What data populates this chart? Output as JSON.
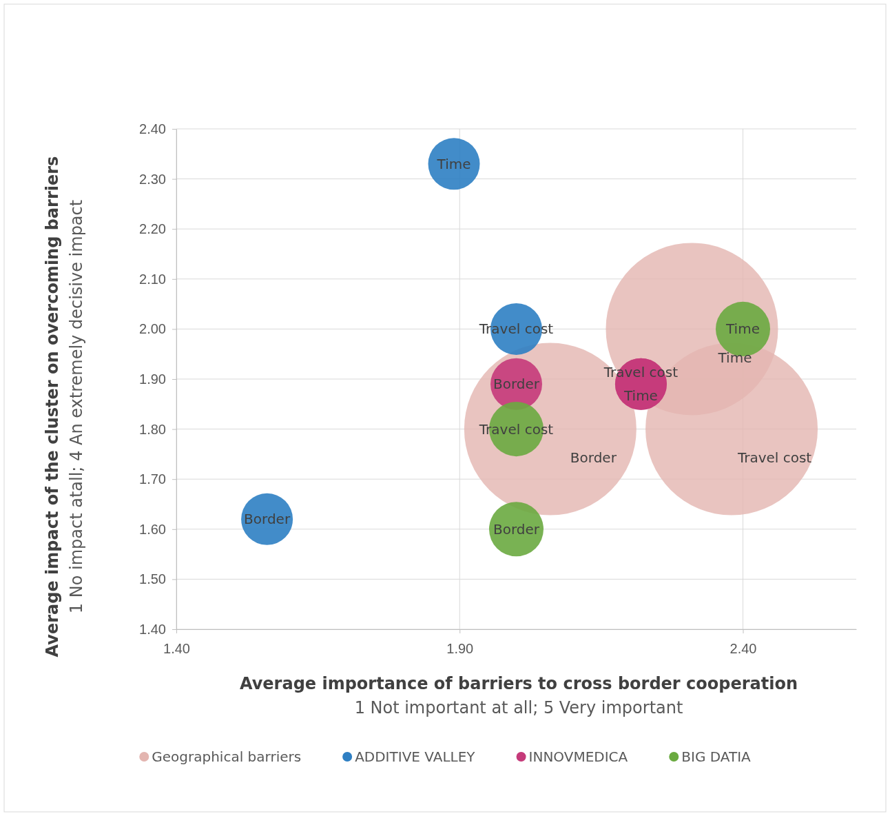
{
  "chart_data": {
    "type": "bubble",
    "xlabel": "Average importance of barriers to cross border cooperation\n1 Not important at all; 5 Very important",
    "ylabel": "Average impact of the cluster on overcoming barriers\n1 No impact atall; 4 An extremely decisive impact",
    "xlim": [
      1.4,
      2.6
    ],
    "xticks": [
      {
        "value": 1.4,
        "label": "1.40"
      },
      {
        "value": 1.9,
        "label": "1.90"
      },
      {
        "value": 2.4,
        "label": "2.40"
      }
    ],
    "ylim": [
      1.4,
      2.4
    ],
    "yticks": [
      {
        "value": 1.4,
        "label": "1.40"
      },
      {
        "value": 1.5,
        "label": "1.50"
      },
      {
        "value": 1.6,
        "label": "1.60"
      },
      {
        "value": 1.7,
        "label": "1.70"
      },
      {
        "value": 1.8,
        "label": "1.80"
      },
      {
        "value": 1.9,
        "label": "1.90"
      },
      {
        "value": 2.0,
        "label": "2.00"
      },
      {
        "value": 2.1,
        "label": "2.10"
      },
      {
        "value": 2.2,
        "label": "2.20"
      },
      {
        "value": 2.3,
        "label": "2.30"
      },
      {
        "value": 2.4,
        "label": "2.40"
      }
    ],
    "grid": true,
    "legend": "bottom",
    "marker": "circle",
    "series": [
      {
        "name": "Geographical barriers",
        "color": "#e3b5b0",
        "x": [
          2.06,
          2.31,
          2.38
        ],
        "values": [
          1.8,
          2.0,
          1.8
        ],
        "sizes": [
          1,
          1,
          1
        ],
        "value_labels": [
          "Border",
          "Time",
          "Travel cost"
        ]
      },
      {
        "name": "ADDITIVE VALLEY",
        "color": "#2e7fc3",
        "x": [
          1.89,
          2.0,
          1.56
        ],
        "values": [
          2.33,
          2.0,
          1.62
        ],
        "sizes": [
          0.09,
          0.09,
          0.09
        ],
        "value_labels": [
          "Time",
          "Travel cost",
          "Border"
        ]
      },
      {
        "name": "INNOVMEDICA",
        "color": "#c53a7a",
        "x": [
          2.0,
          2.22,
          2.22
        ],
        "values": [
          1.89,
          1.89,
          1.89
        ],
        "sizes": [
          0.09,
          0.09,
          0.09
        ],
        "value_labels": [
          "Border",
          "Travel cost",
          "Time"
        ]
      },
      {
        "name": "BIG DATIA",
        "color": "#6aaa40",
        "x": [
          2.4,
          2.0,
          2.0
        ],
        "values": [
          2.0,
          1.8,
          1.6
        ],
        "sizes": [
          0.1,
          0.1,
          0.1
        ],
        "value_labels": [
          "Time",
          "Travel cost",
          "Border"
        ]
      }
    ]
  }
}
